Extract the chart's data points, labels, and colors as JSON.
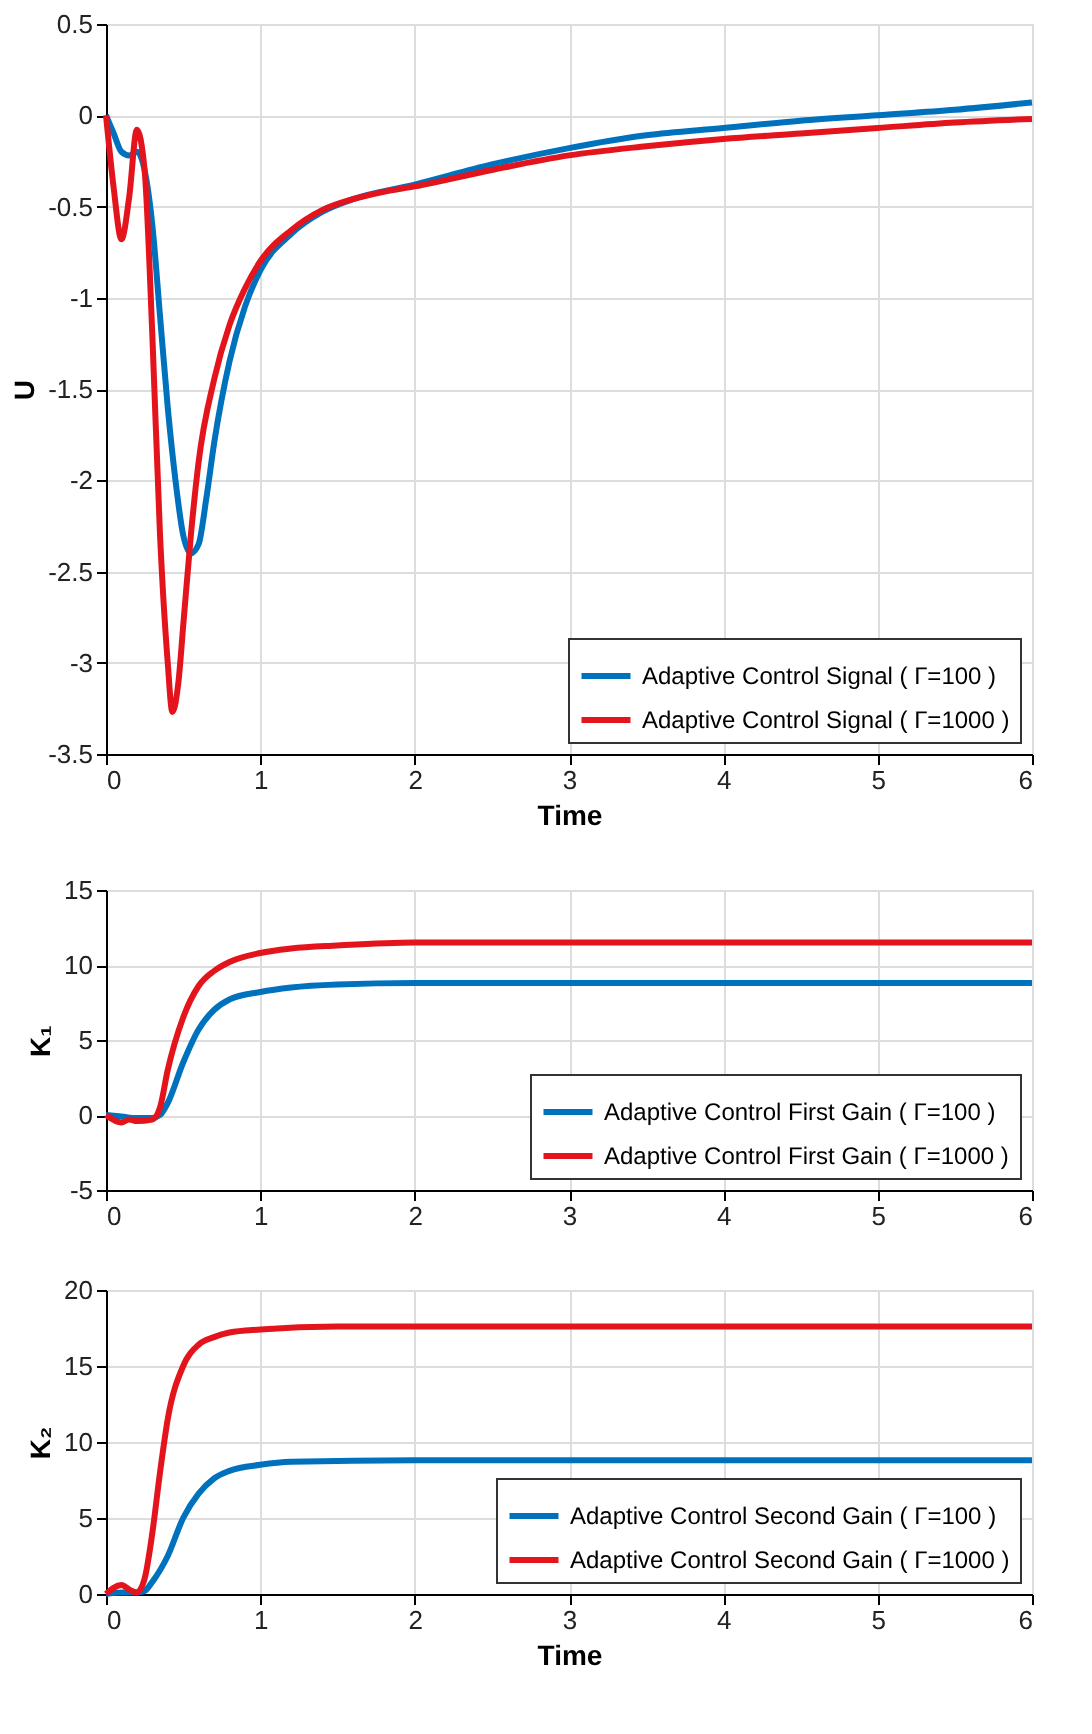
{
  "chart_data": [
    {
      "type": "line",
      "xlabel": "Time",
      "ylabel": "U",
      "xlim": [
        0,
        6
      ],
      "xticks": [
        0,
        1,
        2,
        3,
        4,
        5,
        6
      ],
      "ylim": [
        -3.5,
        0.5
      ],
      "yticks": [
        -3.5,
        -3,
        -2.5,
        -2,
        -1.5,
        -1,
        -0.5,
        0,
        0.5
      ],
      "grid": true,
      "legend": "bottom right",
      "series": [
        {
          "name": "Adaptive Control Signal ( Γ=100 )",
          "color": "#0072bd",
          "x": [
            0,
            0.05,
            0.1,
            0.15,
            0.2,
            0.25,
            0.3,
            0.35,
            0.4,
            0.45,
            0.5,
            0.55,
            0.6,
            0.65,
            0.7,
            0.8,
            0.9,
            1.0,
            1.2,
            1.4,
            1.6,
            2.0,
            2.5,
            3,
            3.5,
            4,
            4.5,
            5,
            5.5,
            6
          ],
          "values": [
            0,
            -0.1,
            -0.2,
            -0.22,
            -0.2,
            -0.3,
            -0.6,
            -1.1,
            -1.6,
            -2.0,
            -2.3,
            -2.4,
            -2.35,
            -2.1,
            -1.8,
            -1.35,
            -1.05,
            -0.85,
            -0.65,
            -0.53,
            -0.46,
            -0.38,
            -0.27,
            -0.18,
            -0.11,
            -0.07,
            -0.03,
            0.0,
            0.03,
            0.07
          ]
        },
        {
          "name": "Adaptive Control Signal ( Γ=1000 )",
          "color": "#e3141c",
          "x": [
            0,
            0.05,
            0.1,
            0.15,
            0.2,
            0.25,
            0.3,
            0.35,
            0.4,
            0.43,
            0.47,
            0.5,
            0.55,
            0.6,
            0.7,
            0.8,
            0.9,
            1.0,
            1.2,
            1.4,
            1.6,
            1.8,
            2,
            2.5,
            3,
            3.5,
            4,
            4.5,
            5,
            5.5,
            6
          ],
          "values": [
            0,
            -0.4,
            -0.68,
            -0.45,
            -0.08,
            -0.3,
            -1.2,
            -2.3,
            -3.0,
            -3.27,
            -3.1,
            -2.8,
            -2.3,
            -1.9,
            -1.45,
            -1.15,
            -0.95,
            -0.8,
            -0.63,
            -0.52,
            -0.46,
            -0.42,
            -0.39,
            -0.3,
            -0.22,
            -0.17,
            -0.13,
            -0.1,
            -0.07,
            -0.04,
            -0.02
          ]
        }
      ]
    },
    {
      "type": "line",
      "ylabel": "K₁",
      "xlim": [
        0,
        6
      ],
      "xticks": [
        0,
        1,
        2,
        3,
        4,
        5,
        6
      ],
      "ylim": [
        -5,
        15
      ],
      "yticks": [
        -5,
        0,
        5,
        10,
        15
      ],
      "grid": true,
      "legend": "bottom right",
      "series": [
        {
          "name": "Adaptive Control First Gain ( Γ=100 )",
          "color": "#0072bd",
          "x": [
            0,
            0.1,
            0.2,
            0.3,
            0.35,
            0.4,
            0.5,
            0.6,
            0.7,
            0.8,
            1,
            1.2,
            1.5,
            2,
            3,
            6
          ],
          "values": [
            0,
            -0.1,
            -0.2,
            -0.2,
            0,
            0.8,
            3.5,
            5.7,
            7,
            7.7,
            8.2,
            8.5,
            8.7,
            8.8,
            8.8,
            8.8
          ]
        },
        {
          "name": "Adaptive Control First Gain ( Γ=1000 )",
          "color": "#e3141c",
          "x": [
            0,
            0.1,
            0.15,
            0.2,
            0.3,
            0.35,
            0.4,
            0.5,
            0.6,
            0.7,
            0.8,
            1,
            1.2,
            1.5,
            2,
            3,
            6
          ],
          "values": [
            0,
            -0.5,
            -0.3,
            -0.4,
            -0.3,
            0.5,
            3,
            6.5,
            8.6,
            9.6,
            10.2,
            10.8,
            11.1,
            11.3,
            11.5,
            11.5,
            11.5
          ]
        }
      ]
    },
    {
      "type": "line",
      "xlabel": "Time",
      "ylabel": "K₂",
      "xlim": [
        0,
        6
      ],
      "xticks": [
        0,
        1,
        2,
        3,
        4,
        5,
        6
      ],
      "ylim": [
        0,
        20
      ],
      "yticks": [
        0,
        5,
        10,
        15,
        20
      ],
      "grid": true,
      "legend": "bottom right",
      "series": [
        {
          "name": "Adaptive Control Second Gain ( Γ=100 )",
          "color": "#0072bd",
          "x": [
            0,
            0.1,
            0.2,
            0.25,
            0.3,
            0.4,
            0.5,
            0.6,
            0.7,
            0.8,
            1,
            1.2,
            2,
            6
          ],
          "values": [
            0,
            0.1,
            0.1,
            0.2,
            0.8,
            2.5,
            5,
            6.6,
            7.6,
            8.1,
            8.5,
            8.7,
            8.8,
            8.8
          ]
        },
        {
          "name": "Adaptive Control Second Gain ( Γ=1000 )",
          "color": "#e3141c",
          "x": [
            0,
            0.1,
            0.15,
            0.2,
            0.25,
            0.3,
            0.35,
            0.4,
            0.5,
            0.6,
            0.7,
            0.8,
            1,
            1.5,
            2,
            6
          ],
          "values": [
            0,
            0.6,
            0.3,
            0.1,
            1,
            4,
            8,
            11.5,
            15,
            16.4,
            16.9,
            17.2,
            17.4,
            17.6,
            17.6,
            17.6
          ]
        }
      ]
    }
  ]
}
